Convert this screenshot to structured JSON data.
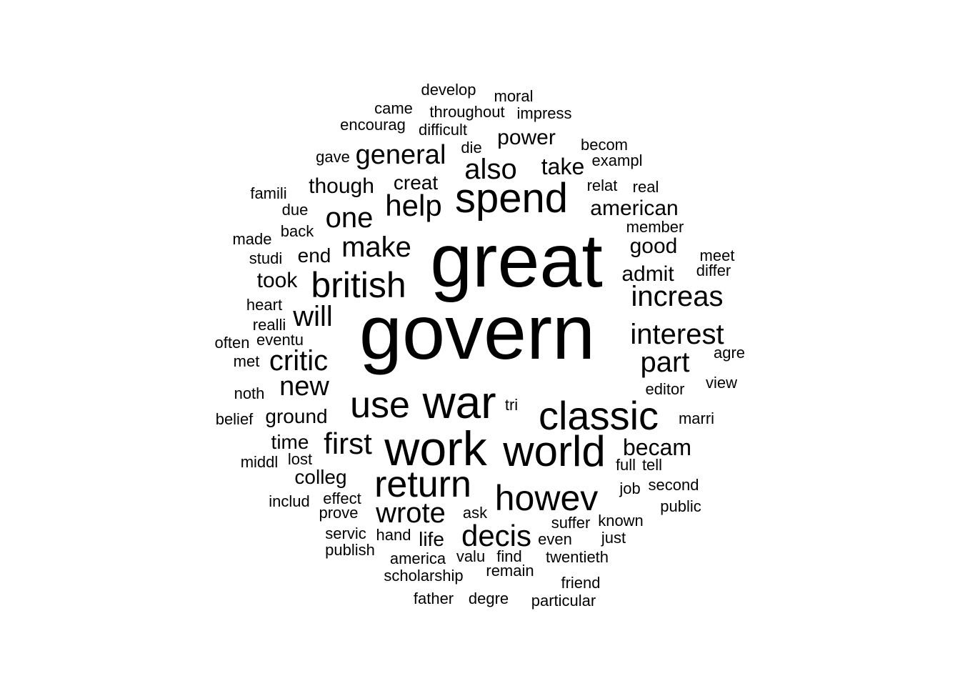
{
  "words": [
    {
      "text": "govern",
      "size": 10
    },
    {
      "text": "great",
      "size": 9
    },
    {
      "text": "work",
      "size": 6
    },
    {
      "text": "war",
      "size": 6
    },
    {
      "text": "world",
      "size": 6
    },
    {
      "text": "classic",
      "size": 6
    },
    {
      "text": "spend",
      "size": 6
    },
    {
      "text": "return",
      "size": 5
    },
    {
      "text": "howev",
      "size": 5
    },
    {
      "text": "british",
      "size": 5
    },
    {
      "text": "use",
      "size": 5
    },
    {
      "text": "decis",
      "size": 4
    },
    {
      "text": "wrote",
      "size": 4
    },
    {
      "text": "first",
      "size": 4
    },
    {
      "text": "increas",
      "size": 4
    },
    {
      "text": "interest",
      "size": 4
    },
    {
      "text": "part",
      "size": 4
    },
    {
      "text": "critic",
      "size": 4
    },
    {
      "text": "will",
      "size": 4
    },
    {
      "text": "make",
      "size": 4
    },
    {
      "text": "help",
      "size": 4
    },
    {
      "text": "one",
      "size": 4
    },
    {
      "text": "also",
      "size": 4
    },
    {
      "text": "general",
      "size": 4
    },
    {
      "text": "new",
      "size": 4
    },
    {
      "text": "becam",
      "size": 3
    },
    {
      "text": "american",
      "size": 3
    },
    {
      "text": "good",
      "size": 3
    },
    {
      "text": "admit",
      "size": 3
    },
    {
      "text": "take",
      "size": 3
    },
    {
      "text": "power",
      "size": 3
    },
    {
      "text": "though",
      "size": 3
    },
    {
      "text": "creat",
      "size": 3
    },
    {
      "text": "took",
      "size": 3
    },
    {
      "text": "end",
      "size": 3
    },
    {
      "text": "ground",
      "size": 3
    },
    {
      "text": "time",
      "size": 3
    },
    {
      "text": "colleg",
      "size": 3
    },
    {
      "text": "life",
      "size": 3
    },
    {
      "text": "develop",
      "size": 2
    },
    {
      "text": "moral",
      "size": 2
    },
    {
      "text": "came",
      "size": 2
    },
    {
      "text": "throughout",
      "size": 2
    },
    {
      "text": "impress",
      "size": 2
    },
    {
      "text": "encourag",
      "size": 2
    },
    {
      "text": "difficult",
      "size": 2
    },
    {
      "text": "die",
      "size": 2
    },
    {
      "text": "becom",
      "size": 2
    },
    {
      "text": "gave",
      "size": 2
    },
    {
      "text": "exampl",
      "size": 2
    },
    {
      "text": "relat",
      "size": 2
    },
    {
      "text": "real",
      "size": 2
    },
    {
      "text": "famili",
      "size": 2
    },
    {
      "text": "due",
      "size": 2
    },
    {
      "text": "member",
      "size": 2
    },
    {
      "text": "back",
      "size": 2
    },
    {
      "text": "made",
      "size": 2
    },
    {
      "text": "meet",
      "size": 2
    },
    {
      "text": "studi",
      "size": 2
    },
    {
      "text": "differ",
      "size": 2
    },
    {
      "text": "heart",
      "size": 2
    },
    {
      "text": "realli",
      "size": 2
    },
    {
      "text": "often",
      "size": 2
    },
    {
      "text": "eventu",
      "size": 2
    },
    {
      "text": "agre",
      "size": 2
    },
    {
      "text": "met",
      "size": 2
    },
    {
      "text": "view",
      "size": 2
    },
    {
      "text": "editor",
      "size": 2
    },
    {
      "text": "noth",
      "size": 2
    },
    {
      "text": "tri",
      "size": 2
    },
    {
      "text": "belief",
      "size": 2
    },
    {
      "text": "marri",
      "size": 2
    },
    {
      "text": "middl",
      "size": 2
    },
    {
      "text": "lost",
      "size": 2
    },
    {
      "text": "full",
      "size": 2
    },
    {
      "text": "tell",
      "size": 2
    },
    {
      "text": "job",
      "size": 2
    },
    {
      "text": "second",
      "size": 2
    },
    {
      "text": "includ",
      "size": 2
    },
    {
      "text": "effect",
      "size": 2
    },
    {
      "text": "public",
      "size": 2
    },
    {
      "text": "prove",
      "size": 2
    },
    {
      "text": "ask",
      "size": 2
    },
    {
      "text": "suffer",
      "size": 2
    },
    {
      "text": "known",
      "size": 2
    },
    {
      "text": "servic",
      "size": 2
    },
    {
      "text": "hand",
      "size": 2
    },
    {
      "text": "even",
      "size": 2
    },
    {
      "text": "just",
      "size": 2
    },
    {
      "text": "publish",
      "size": 2
    },
    {
      "text": "america",
      "size": 2
    },
    {
      "text": "valu",
      "size": 2
    },
    {
      "text": "find",
      "size": 2
    },
    {
      "text": "twentieth",
      "size": 2
    },
    {
      "text": "remain",
      "size": 2
    },
    {
      "text": "scholarship",
      "size": 2
    },
    {
      "text": "friend",
      "size": 2
    },
    {
      "text": "father",
      "size": 2
    },
    {
      "text": "degre",
      "size": 2
    },
    {
      "text": "particular",
      "size": 2
    }
  ]
}
